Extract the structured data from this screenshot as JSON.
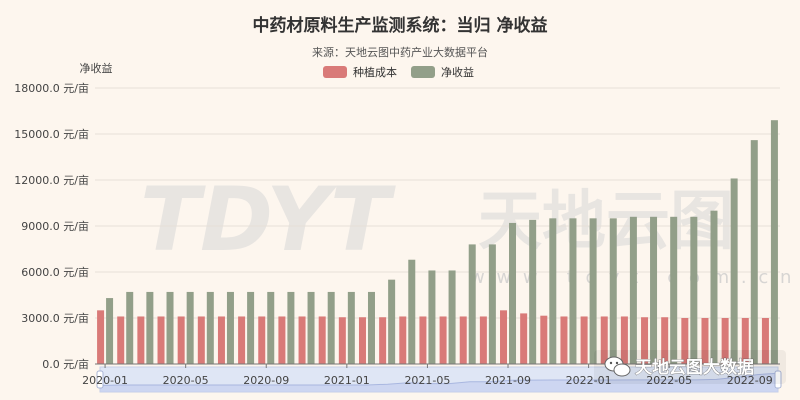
{
  "chart_data": {
    "type": "bar",
    "title": "中药材原料生产监测系统：当归 净收益",
    "subtitle": "来源：天地云图中药产业大数据平台",
    "ylabel": "净收益",
    "ylim": [
      0,
      18000
    ],
    "y_ticks": [
      "0.0 元/亩",
      "3000.0 元/亩",
      "6000.0 元/亩",
      "9000.0 元/亩",
      "12000.0 元/亩",
      "15000.0 元/亩",
      "18000.0 元/亩"
    ],
    "x_tick_labels": [
      "2020-01",
      "2020-05",
      "2020-09",
      "2021-01",
      "2021-05",
      "2021-09",
      "2022-01",
      "2022-05",
      "2022-09"
    ],
    "grid": true,
    "legend_position": "top-center",
    "categories": [
      "2020-01",
      "2020-02",
      "2020-03",
      "2020-04",
      "2020-05",
      "2020-06",
      "2020-07",
      "2020-08",
      "2020-09",
      "2020-10",
      "2020-11",
      "2020-12",
      "2021-01",
      "2021-02",
      "2021-03",
      "2021-04",
      "2021-05",
      "2021-06",
      "2021-07",
      "2021-08",
      "2021-09",
      "2021-10",
      "2021-11",
      "2021-12",
      "2022-01",
      "2022-02",
      "2022-03",
      "2022-04",
      "2022-05",
      "2022-06",
      "2022-07",
      "2022-08",
      "2022-09",
      "2022-10"
    ],
    "series": [
      {
        "name": "种植成本",
        "color": "#d97a78",
        "values": [
          3500,
          3100,
          3100,
          3100,
          3100,
          3100,
          3100,
          3100,
          3100,
          3100,
          3100,
          3100,
          3050,
          3050,
          3050,
          3100,
          3100,
          3100,
          3100,
          3100,
          3500,
          3300,
          3150,
          3100,
          3100,
          3100,
          3100,
          3050,
          3050,
          3000,
          3000,
          3000,
          3000,
          3000
        ]
      },
      {
        "name": "净收益",
        "color": "#929f89",
        "values": [
          4300,
          4700,
          4700,
          4700,
          4700,
          4700,
          4700,
          4700,
          4700,
          4700,
          4700,
          4700,
          4700,
          4700,
          5500,
          6800,
          6100,
          6100,
          7800,
          7800,
          9200,
          9400,
          9500,
          9500,
          9500,
          9500,
          9600,
          9600,
          9600,
          9600,
          10000,
          12100,
          14600,
          15900
        ]
      }
    ]
  },
  "watermark": {
    "logo_text": "TDYT",
    "cn_text": "天地云图",
    "url_text": "w w w . t d y t . c o m . c n"
  },
  "badge": {
    "text": "天地云图大数据",
    "icon": "wechat-icon"
  }
}
